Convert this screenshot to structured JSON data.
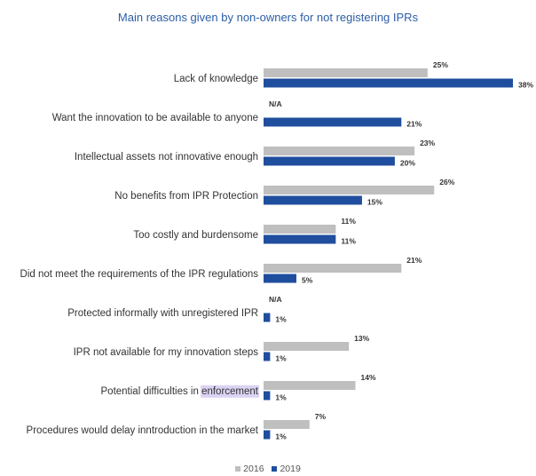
{
  "colors": {
    "s2016": "#bfbfbf",
    "s2019": "#1f4e9e",
    "title": "#2b5ea7",
    "highlight": "#dcd3f3"
  },
  "chart_data": {
    "type": "bar",
    "orientation": "horizontal",
    "title": "Main reasons given by non-owners for not registering IPRs",
    "xlim": [
      0,
      38
    ],
    "grid": false,
    "legend_position": "bottom",
    "categories": [
      "Lack of knowledge",
      "Want the innovation to be available to anyone",
      "Intellectual assets not innovative enough",
      "No benefits from IPR Protection",
      "Too costly and burdensome",
      "Did not meet the requirements of the IPR regulations",
      "Protected informally with unregistered IPR",
      "IPR not available for my innovation steps",
      "Potential difficulties in enforcement",
      "Procedures would delay inntroduction in the market"
    ],
    "series": [
      {
        "name": "2016",
        "values": [
          25,
          null,
          23,
          26,
          11,
          21,
          null,
          13,
          14,
          7
        ],
        "labels": [
          "25%",
          "N/A",
          "23%",
          "26%",
          "11%",
          "21%",
          "N/A",
          "13%",
          "14%",
          "7%"
        ]
      },
      {
        "name": "2019",
        "values": [
          38,
          21,
          20,
          15,
          11,
          5,
          1,
          1,
          1,
          1
        ],
        "labels": [
          "38%",
          "21%",
          "20%",
          "15%",
          "11%",
          "5%",
          "1%",
          "1%",
          "1%",
          "1%"
        ]
      }
    ],
    "highlighted_text": {
      "category": "Potential difficulties in enforcement",
      "word": "enforcement"
    }
  }
}
